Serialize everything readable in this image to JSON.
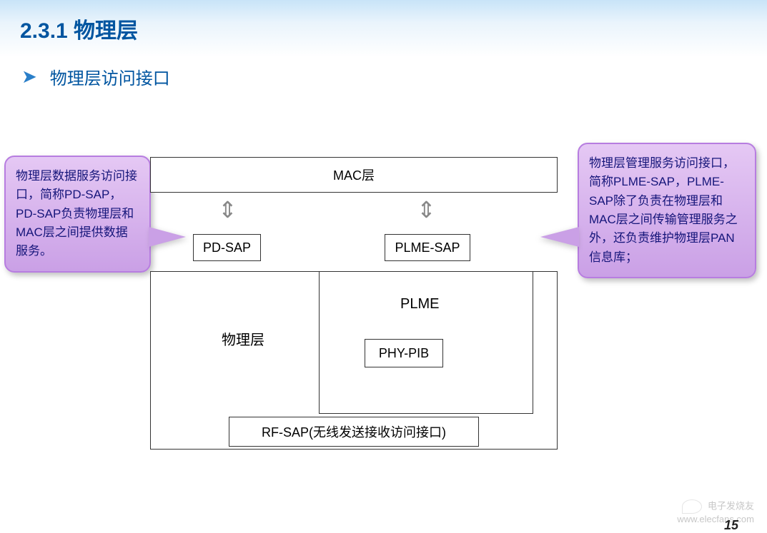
{
  "title": "2.3.1  物理层",
  "bullet": "物理层访问接口",
  "diagram": {
    "mac": "MAC层",
    "pd_sap": "PD-SAP",
    "plme_sap": "PLME-SAP",
    "phy": "物理层",
    "plme": "PLME",
    "phy_pib": "PHY-PIB",
    "rf_sap": "RF-SAP(无线发送接收访问接口)"
  },
  "callouts": {
    "left": "物理层数据服务访问接口，简称PD-SAP，PD-SAP负责物理层和MAC层之间提供数据服务。",
    "right": "物理层管理服务访问接口，简称PLME-SAP，PLME-SAP除了负责在物理层和MAC层之间传输管理服务之外，还负责维护物理层PAN信息库；"
  },
  "watermark": {
    "brand": "电子发烧友",
    "url": "www.elecfans.com"
  },
  "page": "15",
  "colors": {
    "title_color": "#0055a0",
    "callout_bg_top": "#e5c8f4",
    "callout_bg_bottom": "#caa0e6",
    "callout_border": "#b77de0",
    "callout_text": "#15157a",
    "header_grad_top": "#c8e4f8",
    "box_border": "#333333",
    "arrow_color": "#888888"
  }
}
